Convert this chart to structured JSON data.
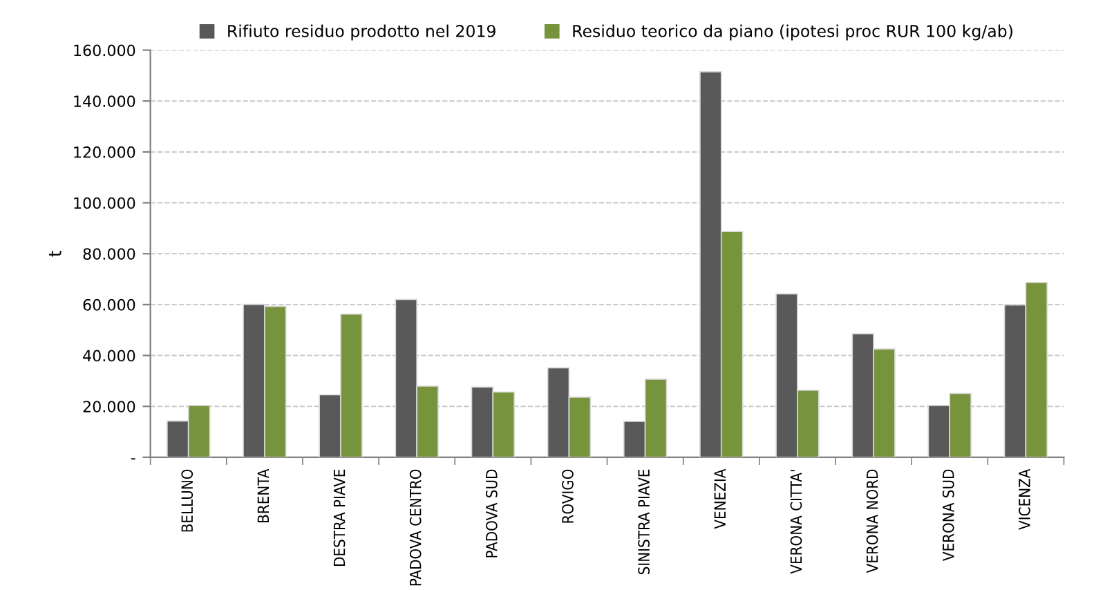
{
  "chart_data": {
    "type": "bar",
    "ylabel": "t",
    "categories": [
      "BELLUNO",
      "BRENTA",
      "DESTRA PIAVE",
      "PADOVA CENTRO",
      "PADOVA SUD",
      "ROVIGO",
      "SINISTRA PIAVE",
      "VENEZIA",
      "VERONA CITTA'",
      "VERONA NORD",
      "VERONA SUD",
      "VICENZA"
    ],
    "series": [
      {
        "name": "Rifiuto residuo prodotto nel 2019",
        "color": "#595959",
        "values": [
          14250,
          60050,
          24530,
          62040,
          27590,
          35170,
          14070,
          151490,
          64200,
          48510,
          20380,
          59870
        ]
      },
      {
        "name": "Residuo teorico da piano (ipotesi proc RUR 100 kg/ab)",
        "color": "#77933c",
        "values": [
          20380,
          59330,
          56270,
          27950,
          25610,
          23620,
          30660,
          88730,
          26330,
          42560,
          25070,
          68710
        ]
      }
    ],
    "ylim": [
      0,
      160000
    ],
    "yticks": [
      {
        "value": 0,
        "label": "-"
      },
      {
        "value": 20000,
        "label": "20.000"
      },
      {
        "value": 40000,
        "label": "40.000"
      },
      {
        "value": 60000,
        "label": "60.000"
      },
      {
        "value": 80000,
        "label": "80.000"
      },
      {
        "value": 100000,
        "label": "100.000"
      },
      {
        "value": 120000,
        "label": "120.000"
      },
      {
        "value": 140000,
        "label": "140.000"
      },
      {
        "value": 160000,
        "label": "160.000"
      }
    ],
    "grid": "y",
    "legend": "top"
  }
}
